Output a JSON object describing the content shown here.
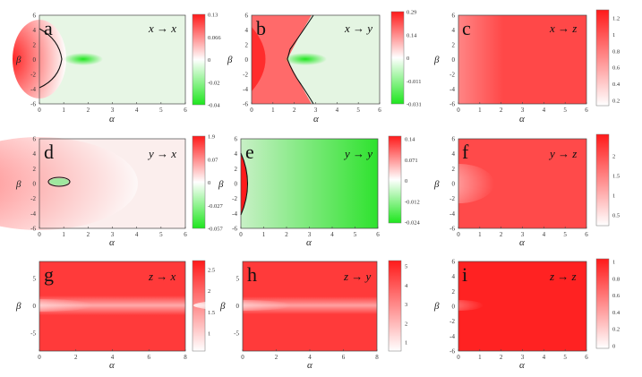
{
  "chart_data": [
    {
      "type": "heatmap",
      "panel": "a",
      "title": "x → x",
      "xlabel": "α",
      "ylabel": "β",
      "xlim": [
        0,
        6
      ],
      "ylim": [
        -6,
        6
      ],
      "xticks": [
        "0",
        "1",
        "2",
        "3",
        "4",
        "5",
        "6"
      ],
      "yticks": [
        "-6",
        "-4",
        "-2",
        "0",
        "2",
        "4",
        "6"
      ],
      "colorbar": {
        "ticks": [
          "0.13",
          "0.066",
          "0",
          "-0.02",
          "-0.04"
        ],
        "max_color": "#ff1a1a",
        "min_color": "#1ee61e"
      },
      "features": {
        "contour_x_at_beta0": 0.95,
        "contour_beta_extent": 3.8,
        "green_spot_alpha": 1.8
      }
    },
    {
      "type": "heatmap",
      "panel": "b",
      "title": "x → y",
      "xlabel": "α",
      "ylabel": "β",
      "xlim": [
        0,
        6
      ],
      "ylim": [
        -6,
        6
      ],
      "xticks": [
        "0",
        "1",
        "2",
        "3",
        "4",
        "5",
        "6"
      ],
      "yticks": [
        "-6",
        "-4",
        "-2",
        "0",
        "2",
        "4",
        "6"
      ],
      "colorbar": {
        "ticks": [
          "0.29",
          "0.14",
          "0",
          "-0.011",
          "-0.031"
        ],
        "max_color": "#ff1a1a",
        "min_color": "#1ee61e"
      },
      "features": {
        "contour_x_at_beta0": 1.5,
        "green_spot_alpha": 2.6
      }
    },
    {
      "type": "heatmap",
      "panel": "c",
      "title": "x → z",
      "xlabel": "α",
      "ylabel": "β",
      "xlim": [
        0,
        6
      ],
      "ylim": [
        -6,
        6
      ],
      "xticks": [
        "0",
        "1",
        "2",
        "3",
        "4",
        "5",
        "6"
      ],
      "yticks": [
        "-6",
        "-4",
        "-2",
        "0",
        "2",
        "4",
        "6"
      ],
      "colorbar": {
        "ticks": [
          "1.2",
          "1",
          "0.8",
          "0.6",
          "0.4",
          "0.2"
        ],
        "max_color": "#ff1a1a",
        "min_color": "#ffffff"
      }
    },
    {
      "type": "heatmap",
      "panel": "d",
      "title": "y → x",
      "xlabel": "α",
      "ylabel": "β",
      "xlim": [
        0,
        6
      ],
      "ylim": [
        -6,
        6
      ],
      "xticks": [
        "0",
        "1",
        "2",
        "3",
        "4",
        "5",
        "6"
      ],
      "yticks": [
        "-6",
        "-4",
        "-2",
        "0",
        "2",
        "4",
        "6"
      ],
      "colorbar": {
        "ticks": [
          "1.9",
          "0.07",
          "0",
          "-0.027",
          "-0.057"
        ],
        "max_color": "#ff1a1a",
        "min_color": "#1ee61e"
      },
      "features": {
        "contour_alpha_range": [
          0.4,
          1.3
        ],
        "contour_beta_extent": 0.7
      }
    },
    {
      "type": "heatmap",
      "panel": "e",
      "title": "y → y",
      "xlabel": "α",
      "ylabel": "β",
      "xlim": [
        0,
        6
      ],
      "ylim": [
        -6,
        6
      ],
      "xticks": [
        "0",
        "1",
        "2",
        "3",
        "4",
        "5",
        "6"
      ],
      "yticks": [
        "-6",
        "-4",
        "-2",
        "0",
        "2",
        "4",
        "6"
      ],
      "colorbar": {
        "ticks": [
          "0.14",
          "0.071",
          "0",
          "-0.012",
          "-0.024"
        ],
        "max_color": "#ff1a1a",
        "min_color": "#1ee61e"
      },
      "features": {
        "contour_x_at_beta0": 0.3,
        "contour_beta_extent": 3.8
      }
    },
    {
      "type": "heatmap",
      "panel": "f",
      "title": "y → z",
      "xlabel": "α",
      "ylabel": "β",
      "xlim": [
        0,
        6
      ],
      "ylim": [
        -6,
        6
      ],
      "xticks": [
        "0",
        "1",
        "2",
        "3",
        "4",
        "5",
        "6"
      ],
      "yticks": [
        "-6",
        "-4",
        "-2",
        "0",
        "2",
        "4",
        "6"
      ],
      "colorbar": {
        "ticks": [
          "2",
          "1.5",
          "1",
          "0.5"
        ],
        "max_color": "#ff1a1a",
        "min_color": "#ffffff"
      }
    },
    {
      "type": "heatmap",
      "panel": "g",
      "title": "z → x",
      "xlabel": "α",
      "ylabel": "β",
      "xlim": [
        0,
        8
      ],
      "ylim": [
        -8,
        8
      ],
      "xticks": [
        "0",
        "2",
        "4",
        "6",
        "8"
      ],
      "yticks": [
        "-5",
        "0",
        "5"
      ],
      "colorbar": {
        "ticks": [
          "2.5",
          "2",
          "1.5",
          "1"
        ],
        "max_color": "#ff1a1a",
        "min_color": "#ffffff"
      }
    },
    {
      "type": "heatmap",
      "panel": "h",
      "title": "z → y",
      "xlabel": "α",
      "ylabel": "β",
      "xlim": [
        0,
        8
      ],
      "ylim": [
        -8,
        8
      ],
      "xticks": [
        "0",
        "2",
        "4",
        "6",
        "8"
      ],
      "yticks": [
        "-5",
        "0",
        "5"
      ],
      "colorbar": {
        "ticks": [
          "5",
          "4",
          "3",
          "2",
          "1"
        ],
        "max_color": "#ff1a1a",
        "min_color": "#ffffff"
      }
    },
    {
      "type": "heatmap",
      "panel": "i",
      "title": "z → z",
      "xlabel": "α",
      "ylabel": "β",
      "xlim": [
        0,
        6
      ],
      "ylim": [
        -6,
        6
      ],
      "xticks": [
        "0",
        "1",
        "2",
        "3",
        "4",
        "5",
        "6"
      ],
      "yticks": [
        "-6",
        "-4",
        "-2",
        "0",
        "2",
        "4",
        "6"
      ],
      "colorbar": {
        "ticks": [
          "1",
          "0.8",
          "0.6",
          "0.4",
          "0.2",
          "0"
        ],
        "max_color": "#ff1a1a",
        "min_color": "#ffffff"
      }
    }
  ]
}
